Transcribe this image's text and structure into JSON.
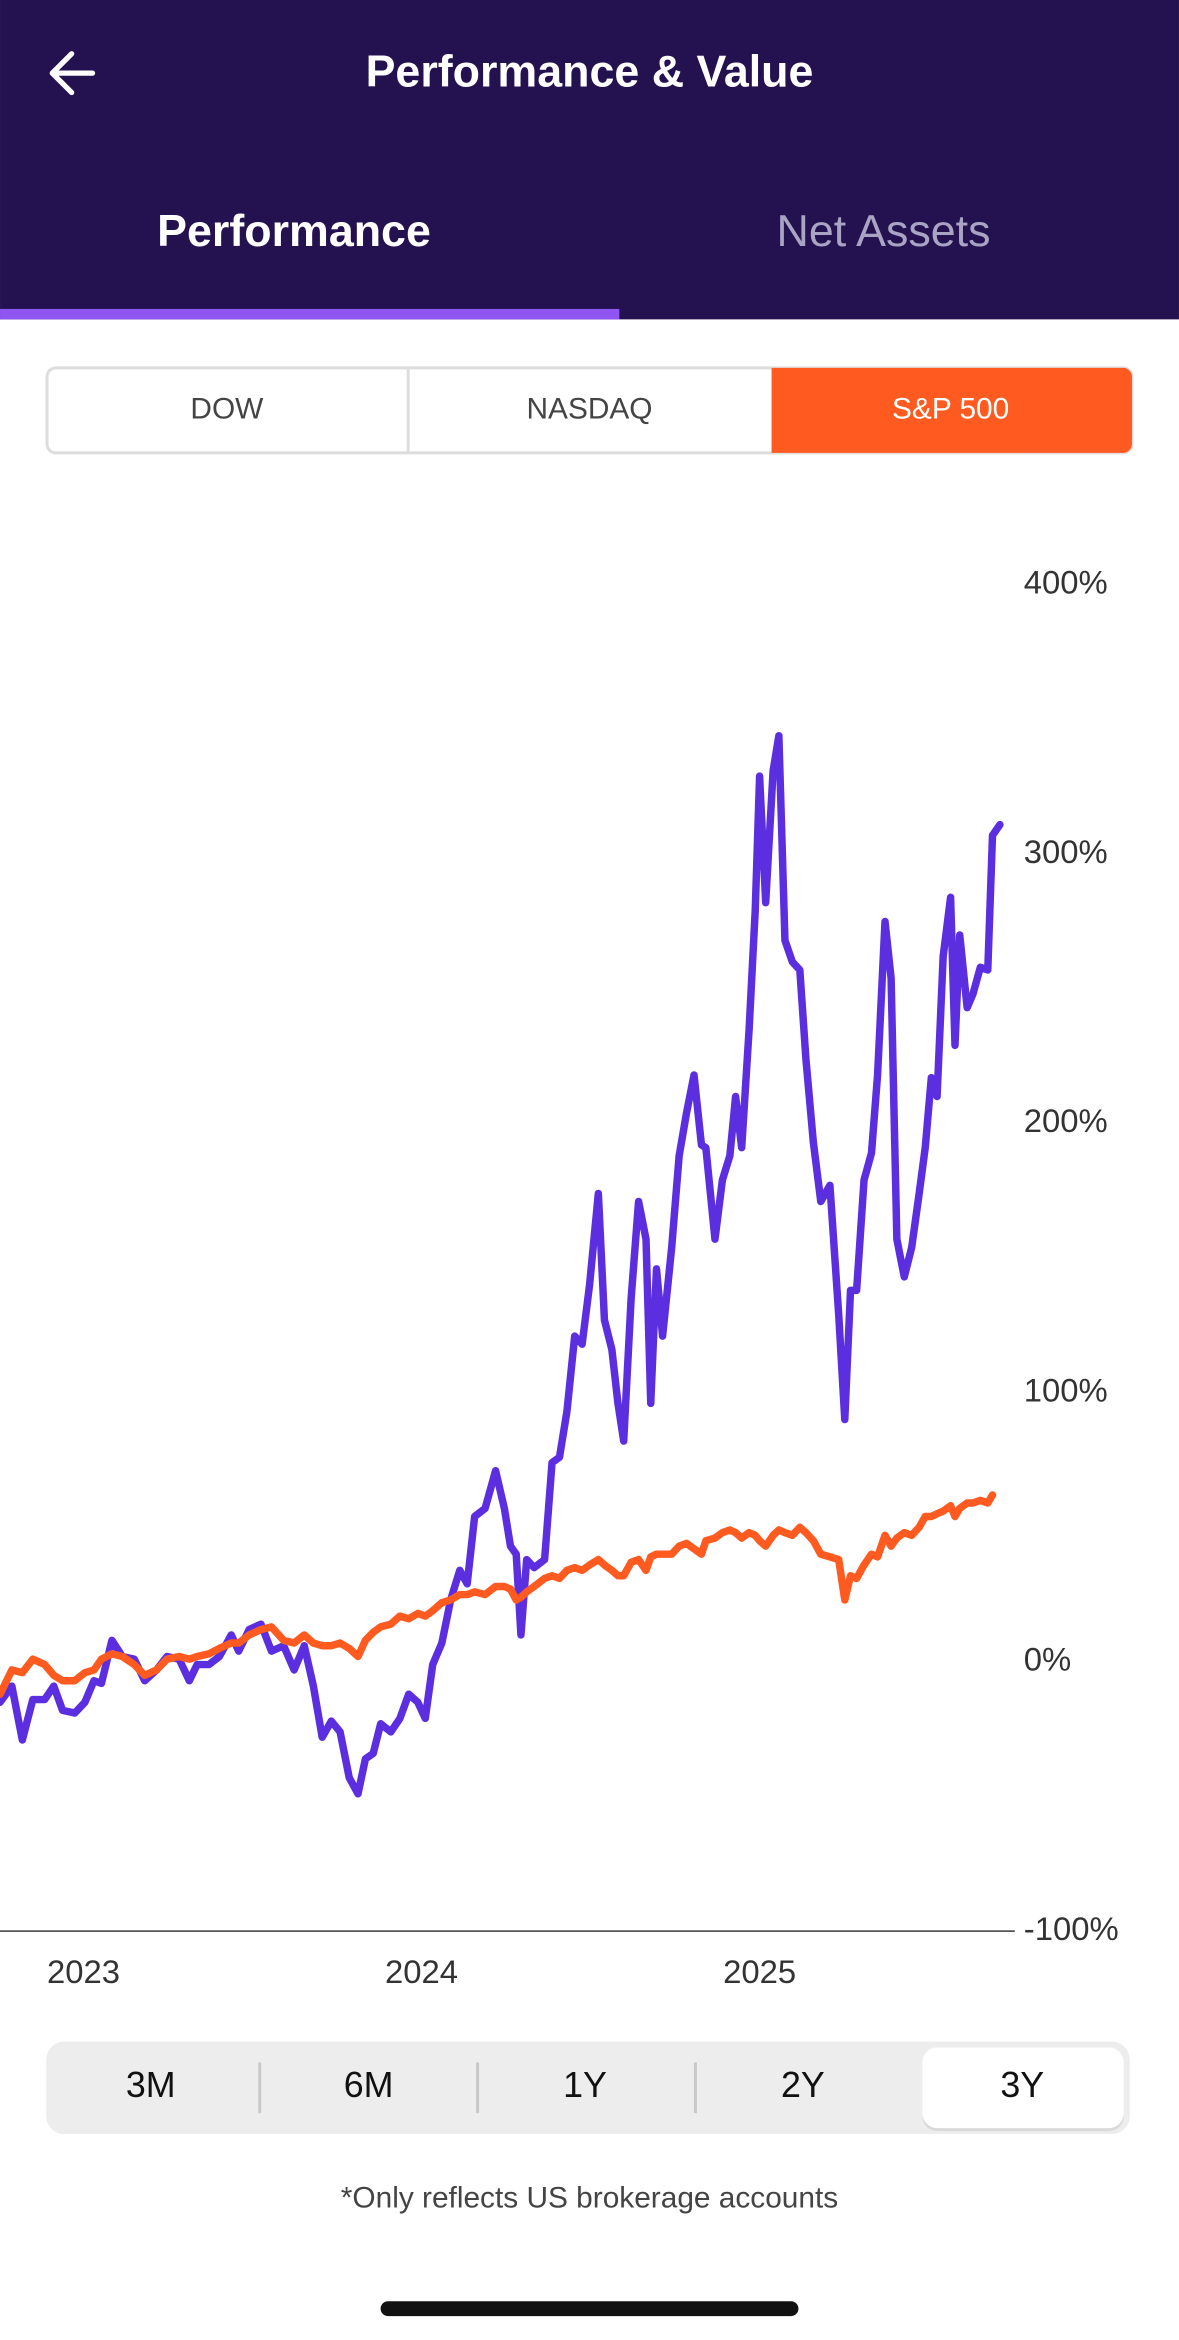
{
  "header": {
    "title": "Performance & Value"
  },
  "tabs": [
    "Performance",
    "Net Assets"
  ],
  "index_selector": [
    "DOW",
    "NASDAQ",
    "S&P 500"
  ],
  "range_selector": [
    "3M",
    "6M",
    "1Y",
    "2Y",
    "3Y"
  ],
  "footnote": "*Only reflects US brokerage accounts",
  "chart_data": {
    "type": "line",
    "x": [
      2022.753,
      2022.788,
      2022.819,
      2022.85,
      2022.885,
      2022.912,
      2022.938,
      2022.974,
      2023.004,
      2023.031,
      2023.053,
      2023.084,
      2023.115,
      2023.15,
      2023.181,
      2023.216,
      2023.247,
      2023.283,
      2023.313,
      2023.336,
      2023.371,
      2023.402,
      2023.437,
      2023.459,
      2023.49,
      2023.525,
      2023.556,
      2023.592,
      2023.623,
      2023.653,
      2023.68,
      2023.706,
      2023.733,
      2023.759,
      2023.786,
      2023.812,
      2023.834,
      2023.857,
      2023.879,
      2023.909,
      2023.936,
      2023.962,
      2023.989,
      2024.011,
      2024.033,
      2024.06,
      2024.086,
      2024.113,
      2024.135,
      2024.157,
      2024.188,
      2024.219,
      2024.245,
      2024.263,
      2024.28,
      2024.294,
      2024.311,
      2024.333,
      2024.364,
      2024.386,
      2024.408,
      2024.43,
      2024.453,
      2024.475,
      2024.497,
      2024.523,
      2024.541,
      2024.563,
      2024.581,
      2024.598,
      2024.62,
      2024.642,
      2024.664,
      2024.678,
      2024.695,
      2024.713,
      2024.74,
      2024.762,
      2024.784,
      2024.806,
      2024.828,
      2024.841,
      2024.868,
      2024.89,
      2024.912,
      2024.929,
      2024.947,
      2024.969,
      2024.987,
      2025.0,
      2025.018,
      2025.04,
      2025.057,
      2025.075,
      2025.097,
      2025.119,
      2025.137,
      2025.159,
      2025.181,
      2025.208,
      2025.234,
      2025.252,
      2025.269,
      2025.287,
      2025.309,
      2025.331,
      2025.349,
      2025.371,
      2025.389,
      2025.406,
      2025.428,
      2025.45,
      2025.472,
      2025.49,
      2025.508,
      2025.525,
      2025.543,
      2025.565,
      2025.578,
      2025.592,
      2025.614,
      2025.631,
      2025.653,
      2025.675,
      2025.689,
      2025.711
    ],
    "series": [
      {
        "color": "#5b2ee0",
        "values": [
          -15,
          -9,
          -29,
          -14,
          -14,
          -9,
          -18,
          -19,
          -15,
          -7,
          -8,
          8,
          2,
          1,
          -7,
          -3,
          2,
          1,
          -7,
          -1,
          -1,
          2,
          10,
          4,
          12,
          14,
          4,
          6,
          -3,
          6,
          -9,
          -28,
          -22,
          -26,
          -43,
          -49,
          -36,
          -34,
          -23,
          -26,
          -21,
          -12,
          -15,
          -21,
          -1,
          7,
          23,
          34,
          29,
          54,
          57,
          71,
          57,
          43,
          40,
          10,
          38,
          35,
          38,
          74,
          76,
          93,
          121,
          118,
          140,
          174,
          127,
          116,
          96,
          82,
          135,
          171,
          157,
          96,
          146,
          121,
          154,
          188,
          204,
          218,
          192,
          191,
          157,
          179,
          188,
          210,
          191,
          235,
          279,
          329,
          282,
          331,
          344,
          268,
          260,
          257,
          224,
          193,
          171,
          177,
          129,
          90,
          138,
          138,
          179,
          189,
          218,
          275,
          254,
          157,
          143,
          154,
          174,
          191,
          217,
          210,
          262,
          284,
          229,
          270,
          243,
          248,
          258,
          257,
          307,
          311
        ]
      },
      {
        "color": "#ff5a1f",
        "values": [
          -12,
          -3,
          -4,
          1,
          -1,
          -5,
          -7,
          -7,
          -4,
          -3,
          1,
          3,
          2,
          -1,
          -5,
          -3,
          1,
          2,
          1,
          2,
          3,
          5,
          7,
          7,
          10,
          12,
          13,
          8,
          7,
          10,
          7,
          6,
          6,
          7,
          5,
          2,
          8,
          11,
          13,
          14,
          17,
          16,
          18,
          17,
          19,
          22,
          23,
          25,
          25,
          26,
          25,
          28,
          28,
          27,
          23,
          24,
          26,
          28,
          31,
          32,
          31,
          34,
          35,
          34,
          36,
          38,
          36,
          34,
          32,
          32,
          37,
          38,
          34,
          39,
          40,
          40,
          40,
          43,
          44,
          42,
          40,
          45,
          46,
          48,
          49,
          48,
          46,
          48,
          47,
          45,
          43,
          47,
          49,
          48,
          47,
          50,
          48,
          45,
          40,
          39,
          38,
          23,
          32,
          31,
          36,
          40,
          39,
          47,
          43,
          46,
          48,
          47,
          50,
          54,
          54,
          55,
          56,
          58,
          54,
          57,
          59,
          59,
          60,
          59,
          62,
          null
        ]
      }
    ],
    "xlim": [
      2022.753,
      2025.755
    ],
    "xticks": [
      2023,
      2024,
      2025
    ],
    "ylim": [
      -100,
      400
    ],
    "yticks": [
      {
        "value": -100,
        "label": "-100%"
      },
      {
        "value": 0,
        "label": "0%"
      },
      {
        "value": 100,
        "label": "100%"
      },
      {
        "value": 200,
        "label": "200%"
      },
      {
        "value": 300,
        "label": "300%"
      },
      {
        "value": 400,
        "label": "400%"
      }
    ],
    "grid": false
  }
}
